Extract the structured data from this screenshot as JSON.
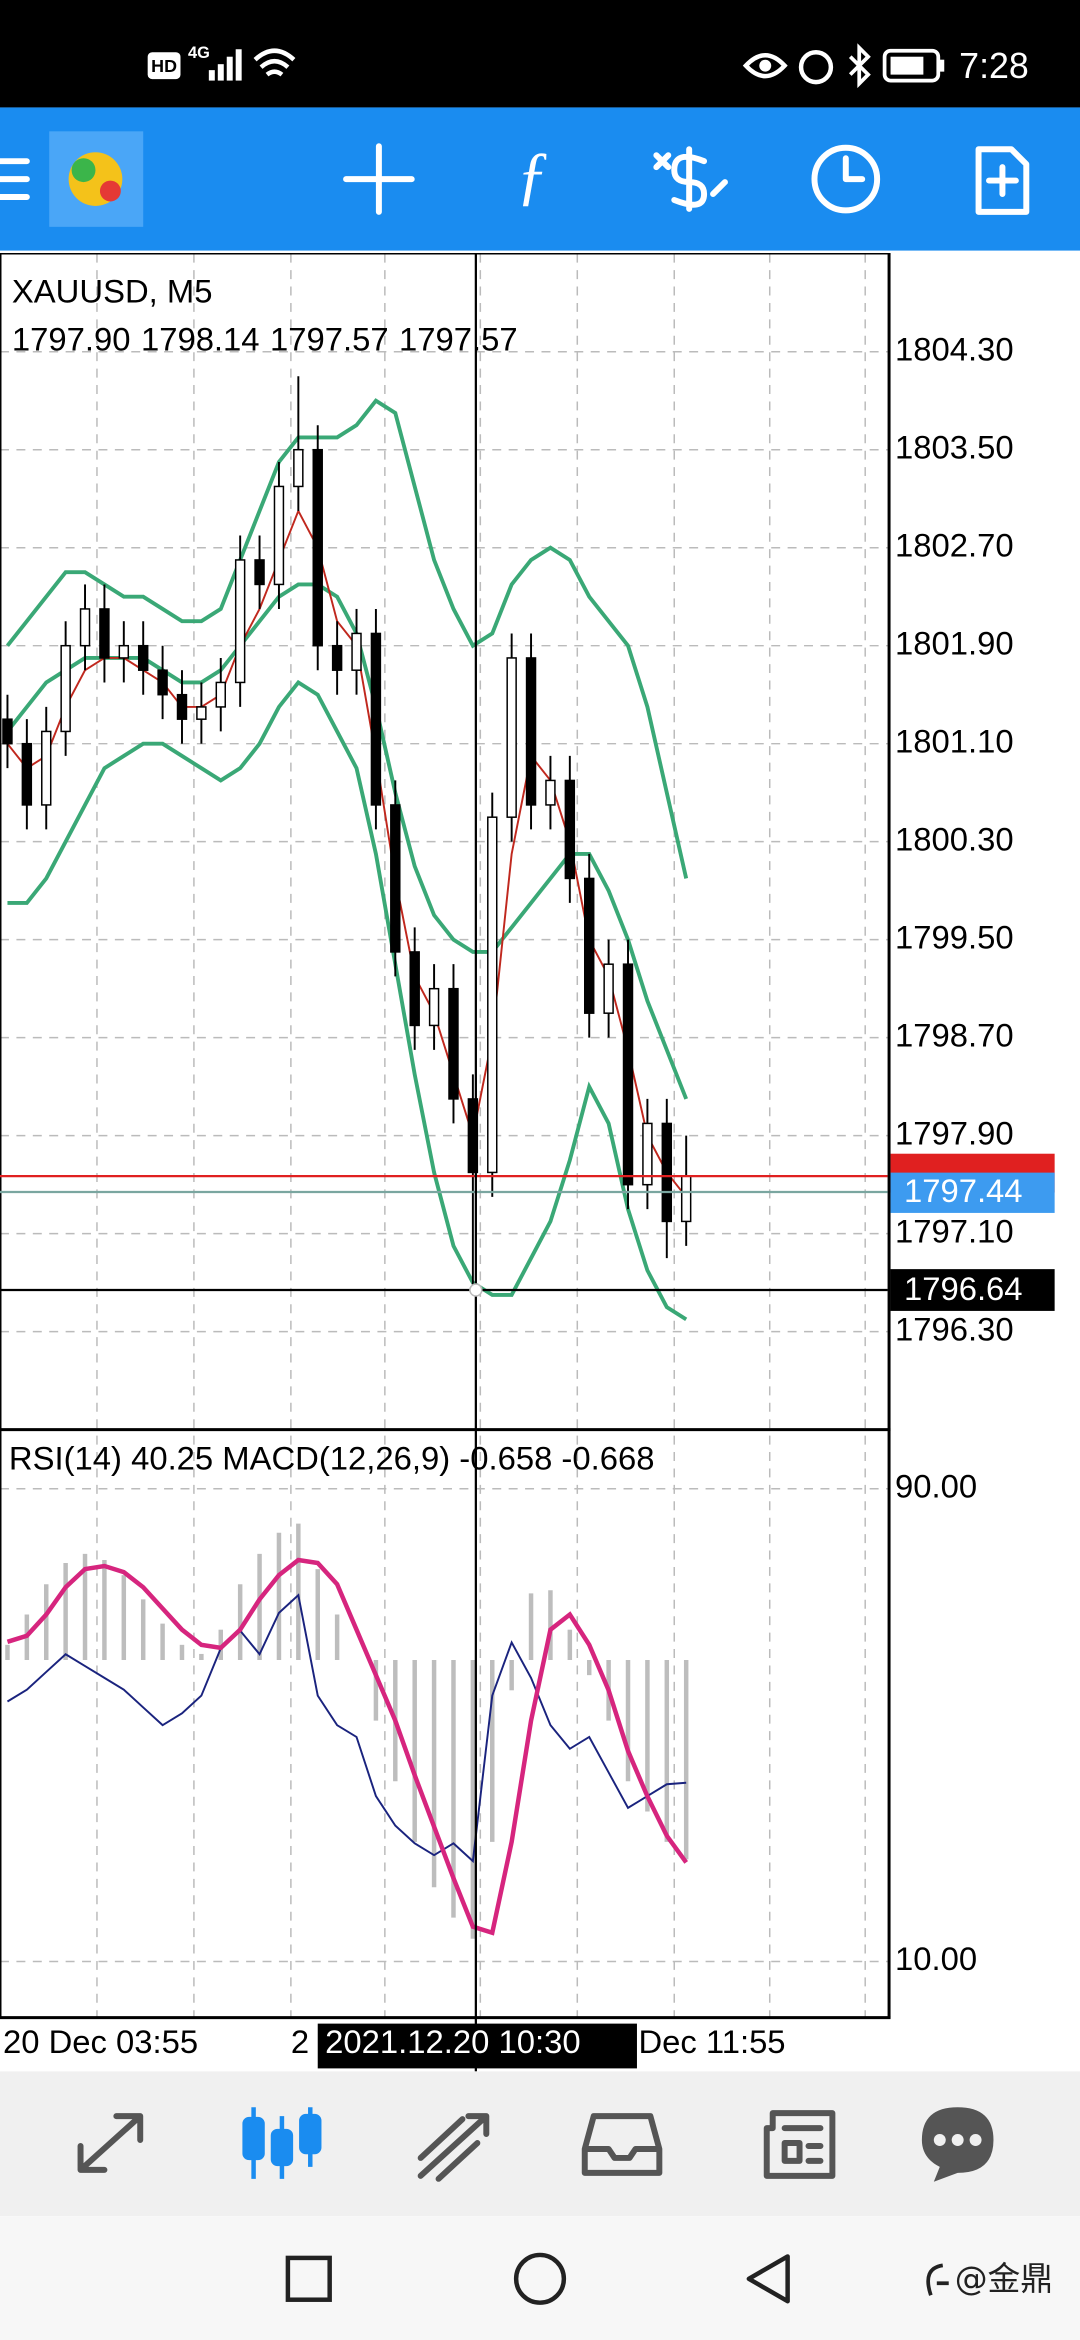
{
  "status_bar": {
    "time": "7:28",
    "hd": "HD",
    "network": "4G"
  },
  "watermark": "@金鼎",
  "chart_data": {
    "type": "candlestick",
    "title": "XAUUSD, M5",
    "quote": [
      {
        "value": 1797.9,
        "label": "1797.90"
      },
      {
        "value": 1798.14,
        "label": "1798.14"
      },
      {
        "value": 1797.57,
        "label": "1797.57"
      },
      {
        "value": 1797.57,
        "label": "1797.57"
      }
    ],
    "ylim": [
      1795.5,
      1805.1
    ],
    "yticks": [
      {
        "value": 1804.3,
        "label": "1804.30"
      },
      {
        "value": 1803.5,
        "label": "1803.50"
      },
      {
        "value": 1802.7,
        "label": "1802.70"
      },
      {
        "value": 1801.9,
        "label": "1801.90"
      },
      {
        "value": 1801.1,
        "label": "1801.10"
      },
      {
        "value": 1800.3,
        "label": "1800.30"
      },
      {
        "value": 1799.5,
        "label": "1799.50"
      },
      {
        "value": 1798.7,
        "label": "1798.70"
      },
      {
        "value": 1797.9,
        "label": "1797.90"
      },
      {
        "value": 1797.1,
        "label": "1797.10"
      },
      {
        "value": 1796.3,
        "label": "1796.30"
      }
    ],
    "grid": true,
    "opens": [
      1801.3,
      1801.1,
      1800.6,
      1801.2,
      1801.9,
      1802.2,
      1801.8,
      1801.9,
      1801.7,
      1801.5,
      1801.3,
      1801.4,
      1801.6,
      1802.6,
      1802.4,
      1803.2,
      1803.5,
      1801.9,
      1801.7,
      1802.0,
      1800.6,
      1799.4,
      1798.8,
      1799.1,
      1798.2,
      1797.6,
      1800.5,
      1801.8,
      1800.6,
      1800.8,
      1800.0,
      1798.9,
      1799.3,
      1797.5,
      1798.0,
      1797.2
    ],
    "highs": [
      1801.5,
      1801.3,
      1801.4,
      1802.1,
      1802.4,
      1802.4,
      1802.1,
      1802.1,
      1801.9,
      1801.7,
      1801.6,
      1801.8,
      1802.8,
      1802.8,
      1803.4,
      1804.1,
      1803.7,
      1802.1,
      1802.2,
      1802.2,
      1800.8,
      1799.6,
      1799.3,
      1799.3,
      1798.4,
      1800.7,
      1802.0,
      1802.0,
      1801.0,
      1801.0,
      1800.2,
      1799.5,
      1799.5,
      1798.2,
      1798.2,
      1797.9
    ],
    "lows": [
      1800.9,
      1800.4,
      1800.4,
      1801.0,
      1801.7,
      1801.6,
      1801.6,
      1801.5,
      1801.3,
      1801.1,
      1801.1,
      1801.2,
      1801.4,
      1802.2,
      1802.2,
      1803.0,
      1801.7,
      1801.5,
      1801.5,
      1800.4,
      1799.2,
      1798.6,
      1798.6,
      1798.0,
      1796.6,
      1797.4,
      1800.3,
      1800.4,
      1800.4,
      1799.8,
      1798.7,
      1798.7,
      1797.3,
      1797.3,
      1796.9,
      1797.0
    ],
    "closes": [
      1801.1,
      1800.6,
      1801.2,
      1801.9,
      1802.2,
      1801.8,
      1801.9,
      1801.7,
      1801.5,
      1801.3,
      1801.4,
      1801.6,
      1802.6,
      1802.4,
      1803.2,
      1803.5,
      1801.9,
      1801.7,
      1802.0,
      1800.6,
      1799.4,
      1798.8,
      1799.1,
      1798.2,
      1797.6,
      1800.5,
      1801.8,
      1800.6,
      1800.8,
      1800.0,
      1798.9,
      1799.3,
      1797.5,
      1798.0,
      1797.2,
      1797.57
    ],
    "up_color": "#ffffff",
    "down_color": "#000000",
    "overlays": [
      {
        "color": "#3aa876",
        "values": [
          1801.9,
          1802.1,
          1802.3,
          1802.5,
          1802.5,
          1802.4,
          1802.3,
          1802.3,
          1802.2,
          1802.1,
          1802.1,
          1802.2,
          1802.6,
          1803.0,
          1803.4,
          1803.6,
          1803.6,
          1803.6,
          1803.7,
          1803.9,
          1803.8,
          1803.2,
          1802.6,
          1802.2,
          1801.9,
          1802.0,
          1802.4,
          1802.6,
          1802.7,
          1802.6,
          1802.3,
          1802.1,
          1801.9,
          1801.4,
          1800.7,
          1800.0
        ]
      },
      {
        "color": "#3aa876",
        "values": [
          1801.2,
          1801.4,
          1801.6,
          1801.7,
          1801.8,
          1801.8,
          1801.8,
          1801.8,
          1801.7,
          1801.6,
          1801.6,
          1801.7,
          1801.9,
          1802.1,
          1802.3,
          1802.4,
          1802.4,
          1802.3,
          1802.0,
          1801.4,
          1800.7,
          1800.1,
          1799.7,
          1799.5,
          1799.4,
          1799.4,
          1799.6,
          1799.8,
          1800.0,
          1800.2,
          1800.2,
          1799.9,
          1799.5,
          1799.0,
          1798.6,
          1798.2
        ]
      },
      {
        "color": "#3aa876",
        "values": [
          1799.8,
          1799.8,
          1800.0,
          1800.3,
          1800.6,
          1800.9,
          1801.0,
          1801.1,
          1801.1,
          1801.0,
          1800.9,
          1800.8,
          1800.9,
          1801.1,
          1801.4,
          1801.6,
          1801.5,
          1801.2,
          1800.9,
          1800.2,
          1799.3,
          1798.4,
          1797.6,
          1797.0,
          1796.7,
          1796.6,
          1796.6,
          1796.9,
          1797.2,
          1797.7,
          1798.3,
          1798.0,
          1797.3,
          1796.8,
          1796.5,
          1796.4
        ]
      },
      {
        "color": "#c0281e",
        "values": [
          1801.1,
          1800.9,
          1801.0,
          1801.4,
          1801.7,
          1801.8,
          1801.8,
          1801.7,
          1801.6,
          1801.4,
          1801.4,
          1801.5,
          1801.9,
          1802.2,
          1802.6,
          1803.0,
          1802.7,
          1802.1,
          1801.9,
          1801.0,
          1800.0,
          1799.2,
          1798.9,
          1798.4,
          1797.9,
          1798.7,
          1800.2,
          1801.0,
          1800.8,
          1800.3,
          1799.5,
          1799.2,
          1798.6,
          1797.9,
          1797.6,
          1797.4
        ]
      }
    ],
    "ask_line": {
      "value": 1797.57,
      "color": "#e02020"
    },
    "bid_line": {
      "value": 1797.44,
      "label": "1797.44",
      "color": "#3d9bf0"
    },
    "crosshair_price": {
      "value": 1796.64,
      "label": "1796.64"
    },
    "crosshair_time": "2021.12.20 10:30",
    "x_labels": [
      "20 Dec 03:55",
      "2",
      "Dec 11:55"
    ],
    "indicator_title": "RSI(14) 40.25 MACD(12,26,9) -0.658 -0.668",
    "rsi_lim": [
      0,
      100
    ],
    "rsi_ticks": [
      {
        "value": 90,
        "label": "90.00"
      },
      {
        "value": 10,
        "label": "10.00"
      }
    ],
    "macd_lim": [
      -1.19,
      0.76
    ],
    "rsi": {
      "color": "#1a237e",
      "values": [
        54,
        56,
        59,
        62,
        60,
        58,
        56,
        53,
        50,
        52,
        55,
        63,
        66,
        62,
        69,
        72,
        55,
        50,
        48,
        38,
        33,
        30,
        28,
        30,
        27,
        55,
        64,
        58,
        50,
        46,
        48,
        42,
        36,
        38,
        40,
        40.25
      ]
    },
    "macd": {
      "color": "#bdbdbd",
      "values": [
        0.05,
        0.15,
        0.25,
        0.32,
        0.35,
        0.33,
        0.28,
        0.2,
        0.12,
        0.05,
        0.02,
        0.1,
        0.25,
        0.35,
        0.42,
        0.45,
        0.3,
        0.15,
        0.0,
        -0.2,
        -0.4,
        -0.6,
        -0.75,
        -0.85,
        -0.92,
        -0.6,
        -0.1,
        0.22,
        0.23,
        0.1,
        -0.05,
        -0.2,
        -0.4,
        -0.5,
        -0.6,
        -0.658
      ]
    },
    "signal": {
      "color": "#d6257e",
      "values": [
        0.06,
        0.08,
        0.15,
        0.24,
        0.3,
        0.31,
        0.29,
        0.24,
        0.17,
        0.1,
        0.05,
        0.04,
        0.1,
        0.2,
        0.28,
        0.33,
        0.32,
        0.25,
        0.1,
        -0.05,
        -0.2,
        -0.38,
        -0.55,
        -0.72,
        -0.88,
        -0.9,
        -0.6,
        -0.2,
        0.1,
        0.15,
        0.05,
        -0.1,
        -0.3,
        -0.45,
        -0.58,
        -0.668
      ]
    }
  }
}
